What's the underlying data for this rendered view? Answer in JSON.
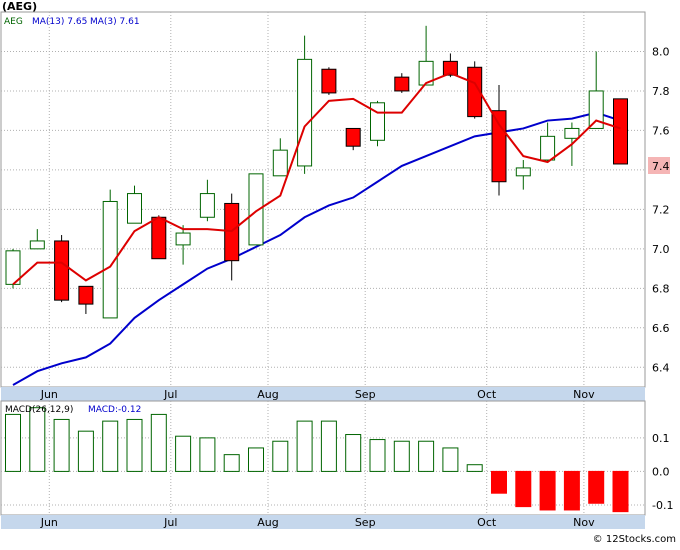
{
  "title": "(AEG)",
  "colors": {
    "up_candle_border": "#006400",
    "down_candle_fill": "#ff0000",
    "ma_long": "#0000cc",
    "ma_short": "#dd0000",
    "macd_positive": "#006400",
    "macd_negative": "#ff0000",
    "axis_band": "#c5d7ec",
    "last_price_badge": "#f5b5b5"
  },
  "price_legend": {
    "symbol": "AEG",
    "ma_long": "MA(13)  7.65",
    "ma_short": "MA(3)  7.61"
  },
  "macd_legend": {
    "label": "MACD(26,12,9)",
    "value": "MACD:-0.12"
  },
  "last_price_label": "7.4",
  "watermark": "© 12Stocks.com",
  "chart_data": [
    {
      "type": "candlestick",
      "title": "(AEG)",
      "ylim": [
        6.3,
        8.2
      ],
      "y_ticks": [
        6.4,
        6.6,
        6.8,
        7.0,
        7.2,
        7.4,
        7.6,
        7.8,
        8.0
      ],
      "y_tick_labels": [
        "6.4",
        "6.6",
        "6.8",
        "7.0",
        "7.2",
        "7.6",
        "7.8",
        "8.0"
      ],
      "x_tick_labels": [
        "Jun",
        "Jul",
        "Aug",
        "Sep",
        "Oct",
        "Nov"
      ],
      "x_tick_index": [
        1,
        6,
        10,
        14,
        19,
        23
      ],
      "grid": true,
      "candles": [
        {
          "o": 6.82,
          "h": 7.0,
          "l": 6.8,
          "c": 6.99
        },
        {
          "o": 7.0,
          "h": 7.1,
          "l": 7.0,
          "c": 7.04
        },
        {
          "o": 7.04,
          "h": 7.07,
          "l": 6.73,
          "c": 6.74
        },
        {
          "o": 6.81,
          "h": 6.81,
          "l": 6.67,
          "c": 6.72
        },
        {
          "o": 6.65,
          "h": 7.3,
          "l": 6.65,
          "c": 7.24
        },
        {
          "o": 7.13,
          "h": 7.32,
          "l": 7.13,
          "c": 7.28
        },
        {
          "o": 7.16,
          "h": 7.17,
          "l": 6.95,
          "c": 6.95
        },
        {
          "o": 7.02,
          "h": 7.12,
          "l": 6.92,
          "c": 7.08
        },
        {
          "o": 7.16,
          "h": 7.35,
          "l": 7.14,
          "c": 7.28
        },
        {
          "o": 7.23,
          "h": 7.28,
          "l": 6.84,
          "c": 6.94
        },
        {
          "o": 7.02,
          "h": 7.38,
          "l": 7.02,
          "c": 7.38
        },
        {
          "o": 7.37,
          "h": 7.56,
          "l": 7.37,
          "c": 7.5
        },
        {
          "o": 7.42,
          "h": 8.08,
          "l": 7.38,
          "c": 7.96
        },
        {
          "o": 7.91,
          "h": 7.92,
          "l": 7.78,
          "c": 7.79
        },
        {
          "o": 7.61,
          "h": 7.61,
          "l": 7.5,
          "c": 7.52
        },
        {
          "o": 7.55,
          "h": 7.75,
          "l": 7.52,
          "c": 7.74
        },
        {
          "o": 7.87,
          "h": 7.89,
          "l": 7.79,
          "c": 7.8
        },
        {
          "o": 7.83,
          "h": 8.13,
          "l": 7.83,
          "c": 7.95
        },
        {
          "o": 7.95,
          "h": 7.99,
          "l": 7.87,
          "c": 7.88
        },
        {
          "o": 7.92,
          "h": 7.95,
          "l": 7.66,
          "c": 7.67
        },
        {
          "o": 7.7,
          "h": 7.83,
          "l": 7.27,
          "c": 7.34
        },
        {
          "o": 7.37,
          "h": 7.45,
          "l": 7.3,
          "c": 7.41
        },
        {
          "o": 7.45,
          "h": 7.64,
          "l": 7.44,
          "c": 7.57
        },
        {
          "o": 7.56,
          "h": 7.64,
          "l": 7.42,
          "c": 7.61
        },
        {
          "o": 7.61,
          "h": 8.0,
          "l": 7.61,
          "c": 7.8
        },
        {
          "o": 7.76,
          "h": 7.76,
          "l": 7.43,
          "c": 7.43
        }
      ],
      "series": [
        {
          "name": "MA(13)",
          "values": [
            6.31,
            6.38,
            6.42,
            6.45,
            6.52,
            6.65,
            6.74,
            6.82,
            6.9,
            6.95,
            7.01,
            7.07,
            7.16,
            7.22,
            7.26,
            7.34,
            7.42,
            7.47,
            7.52,
            7.57,
            7.59,
            7.61,
            7.65,
            7.66,
            7.69,
            7.65
          ]
        },
        {
          "name": "MA(3)",
          "values": [
            6.82,
            6.93,
            6.93,
            6.84,
            6.91,
            7.09,
            7.16,
            7.1,
            7.1,
            7.09,
            7.19,
            7.27,
            7.62,
            7.75,
            7.76,
            7.69,
            7.69,
            7.84,
            7.89,
            7.84,
            7.63,
            7.47,
            7.44,
            7.53,
            7.65,
            7.61
          ]
        }
      ]
    },
    {
      "type": "bar",
      "title": "MACD(26,12,9)",
      "ylim": [
        -0.13,
        0.21
      ],
      "y_ticks": [
        0.1,
        0.0,
        -0.1
      ],
      "y_tick_labels": [
        "0.1",
        "0.0",
        "-0.1"
      ],
      "x_tick_labels": [
        "Jun",
        "Jul",
        "Aug",
        "Sep",
        "Oct",
        "Nov"
      ],
      "x_tick_index": [
        1,
        6,
        10,
        14,
        19,
        23
      ],
      "values": [
        0.17,
        0.19,
        0.155,
        0.12,
        0.15,
        0.155,
        0.17,
        0.105,
        0.1,
        0.05,
        0.07,
        0.09,
        0.15,
        0.15,
        0.11,
        0.095,
        0.09,
        0.09,
        0.07,
        0.02,
        -0.065,
        -0.105,
        -0.115,
        -0.115,
        -0.095,
        -0.12
      ]
    }
  ]
}
